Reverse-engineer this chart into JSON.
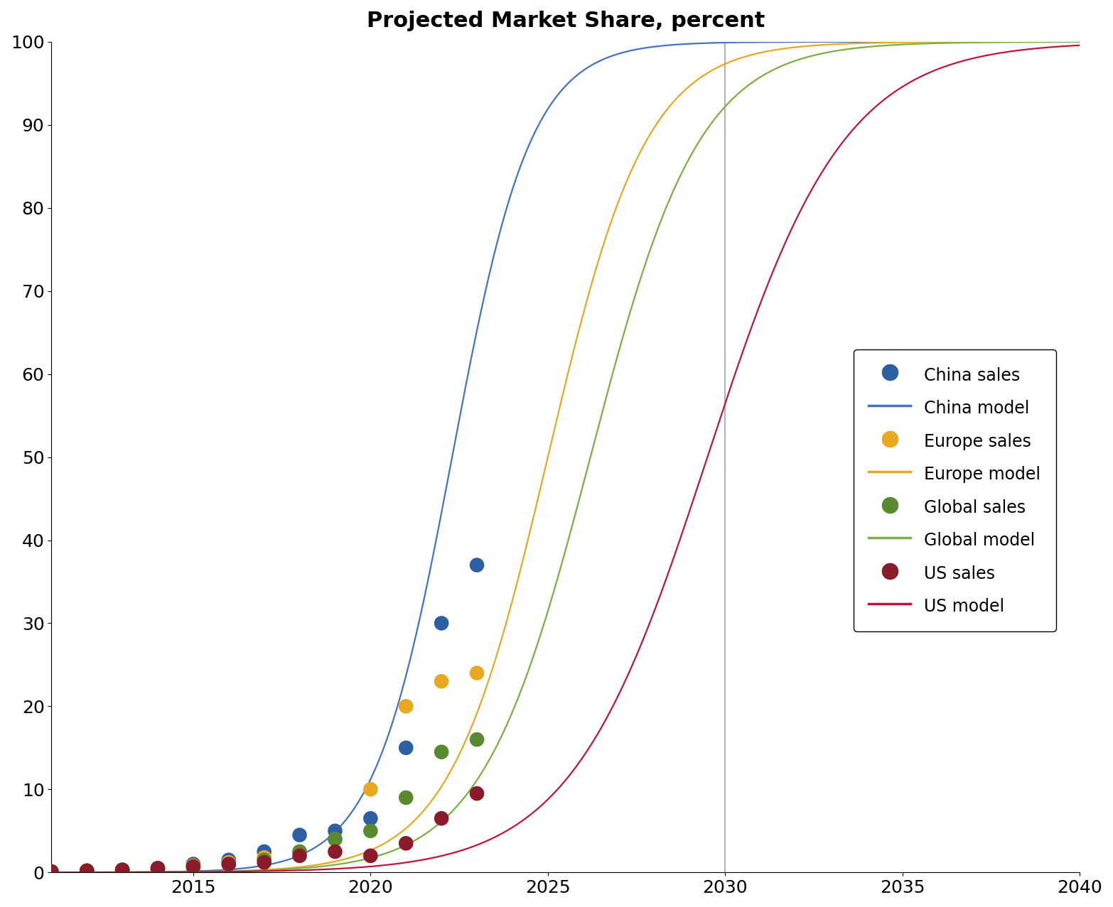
{
  "title": "Projected Market Share, percent",
  "xlim": [
    2011,
    2040
  ],
  "ylim": [
    0,
    100
  ],
  "yticks": [
    0,
    10,
    20,
    30,
    40,
    50,
    60,
    70,
    80,
    90,
    100
  ],
  "xticks": [
    2015,
    2020,
    2025,
    2030,
    2035,
    2040
  ],
  "vline_x": 2030,
  "vline_color": "#aaaaaa",
  "series": {
    "China": {
      "line_color": "#4472C4",
      "dot_color": "#2E5FA3",
      "midpoint": 2022.3,
      "growth_rate": 0.9,
      "data_years": [
        2011,
        2012,
        2013,
        2014,
        2015,
        2016,
        2017,
        2018,
        2019,
        2020,
        2021,
        2022,
        2023
      ],
      "data_values": [
        0.1,
        0.2,
        0.3,
        0.5,
        1.0,
        1.5,
        2.5,
        4.5,
        5.0,
        6.5,
        15.0,
        30.0,
        37.0
      ]
    },
    "Europe": {
      "line_color": "#E8A820",
      "dot_color": "#E8A820",
      "midpoint": 2025.0,
      "growth_rate": 0.72,
      "data_years": [
        2011,
        2012,
        2013,
        2014,
        2015,
        2016,
        2017,
        2018,
        2019,
        2020,
        2021,
        2022,
        2023
      ],
      "data_values": [
        0.1,
        0.2,
        0.3,
        0.5,
        0.8,
        1.2,
        1.8,
        2.5,
        4.0,
        10.0,
        20.0,
        23.0,
        24.0
      ]
    },
    "Global": {
      "line_color": "#7BB040",
      "dot_color": "#5A8A30",
      "midpoint": 2026.2,
      "growth_rate": 0.65,
      "data_years": [
        2011,
        2012,
        2013,
        2014,
        2015,
        2016,
        2017,
        2018,
        2019,
        2020,
        2021,
        2022,
        2023
      ],
      "data_values": [
        0.1,
        0.2,
        0.3,
        0.4,
        0.6,
        1.0,
        1.5,
        2.5,
        4.0,
        5.0,
        9.0,
        14.5,
        16.0
      ]
    },
    "US": {
      "line_color": "#C0143C",
      "dot_color": "#8B1A2A",
      "midpoint": 2029.5,
      "growth_rate": 0.52,
      "data_years": [
        2011,
        2012,
        2013,
        2014,
        2015,
        2016,
        2017,
        2018,
        2019,
        2020,
        2021,
        2022,
        2023
      ],
      "data_values": [
        0.1,
        0.2,
        0.3,
        0.5,
        0.7,
        1.0,
        1.2,
        2.0,
        2.5,
        2.0,
        3.5,
        6.5,
        9.5
      ]
    }
  },
  "legend_entries": [
    {
      "label": "China sales",
      "type": "dot",
      "color": "#2E5FA3"
    },
    {
      "label": "China model",
      "type": "line",
      "color": "#4472C4"
    },
    {
      "label": "Europe sales",
      "type": "dot",
      "color": "#E8A820"
    },
    {
      "label": "Europe model",
      "type": "line",
      "color": "#E8A820"
    },
    {
      "label": "Global sales",
      "type": "dot",
      "color": "#5A8A30"
    },
    {
      "label": "Global model",
      "type": "line",
      "color": "#7BB040"
    },
    {
      "label": "US sales",
      "type": "dot",
      "color": "#8B1A2A"
    },
    {
      "label": "US model",
      "type": "line",
      "color": "#C0143C"
    }
  ],
  "title_fontsize": 22,
  "tick_fontsize": 18,
  "legend_fontsize": 17,
  "dot_size": 220,
  "line_width": 1.6
}
